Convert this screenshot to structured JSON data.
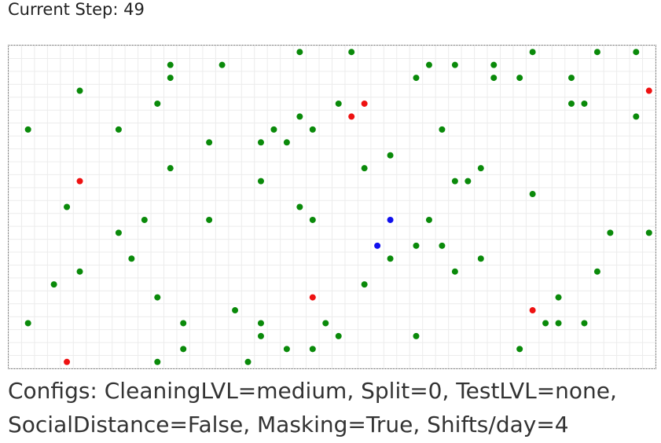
{
  "header": {
    "step_text": "Current Step: 49"
  },
  "grid": {
    "cols": 50,
    "rows": 25,
    "colors": {
      "healthy": "#0a8a0a",
      "infected": "#ee1111",
      "immune": "#1010ee",
      "gridline": "#ececec"
    },
    "agents": [
      {
        "c": 22,
        "r": 0,
        "s": "healthy"
      },
      {
        "c": 26,
        "r": 0,
        "s": "healthy"
      },
      {
        "c": 40,
        "r": 0,
        "s": "healthy"
      },
      {
        "c": 45,
        "r": 0,
        "s": "healthy"
      },
      {
        "c": 48,
        "r": 0,
        "s": "healthy"
      },
      {
        "c": 12,
        "r": 1,
        "s": "healthy"
      },
      {
        "c": 16,
        "r": 1,
        "s": "healthy"
      },
      {
        "c": 32,
        "r": 1,
        "s": "healthy"
      },
      {
        "c": 34,
        "r": 1,
        "s": "healthy"
      },
      {
        "c": 37,
        "r": 1,
        "s": "healthy"
      },
      {
        "c": 12,
        "r": 2,
        "s": "healthy"
      },
      {
        "c": 31,
        "r": 2,
        "s": "healthy"
      },
      {
        "c": 37,
        "r": 2,
        "s": "healthy"
      },
      {
        "c": 39,
        "r": 2,
        "s": "healthy"
      },
      {
        "c": 43,
        "r": 2,
        "s": "healthy"
      },
      {
        "c": 5,
        "r": 3,
        "s": "healthy"
      },
      {
        "c": 49,
        "r": 3,
        "s": "infected"
      },
      {
        "c": 11,
        "r": 4,
        "s": "healthy"
      },
      {
        "c": 25,
        "r": 4,
        "s": "healthy"
      },
      {
        "c": 27,
        "r": 4,
        "s": "infected"
      },
      {
        "c": 43,
        "r": 4,
        "s": "healthy"
      },
      {
        "c": 44,
        "r": 4,
        "s": "healthy"
      },
      {
        "c": 22,
        "r": 5,
        "s": "healthy"
      },
      {
        "c": 26,
        "r": 5,
        "s": "infected"
      },
      {
        "c": 48,
        "r": 5,
        "s": "healthy"
      },
      {
        "c": 1,
        "r": 6,
        "s": "healthy"
      },
      {
        "c": 8,
        "r": 6,
        "s": "healthy"
      },
      {
        "c": 20,
        "r": 6,
        "s": "healthy"
      },
      {
        "c": 23,
        "r": 6,
        "s": "healthy"
      },
      {
        "c": 33,
        "r": 6,
        "s": "healthy"
      },
      {
        "c": 15,
        "r": 7,
        "s": "healthy"
      },
      {
        "c": 19,
        "r": 7,
        "s": "healthy"
      },
      {
        "c": 21,
        "r": 7,
        "s": "healthy"
      },
      {
        "c": 29,
        "r": 8,
        "s": "healthy"
      },
      {
        "c": 12,
        "r": 9,
        "s": "healthy"
      },
      {
        "c": 27,
        "r": 9,
        "s": "healthy"
      },
      {
        "c": 36,
        "r": 9,
        "s": "healthy"
      },
      {
        "c": 5,
        "r": 10,
        "s": "infected"
      },
      {
        "c": 19,
        "r": 10,
        "s": "healthy"
      },
      {
        "c": 34,
        "r": 10,
        "s": "healthy"
      },
      {
        "c": 35,
        "r": 10,
        "s": "healthy"
      },
      {
        "c": 40,
        "r": 11,
        "s": "healthy"
      },
      {
        "c": 4,
        "r": 12,
        "s": "healthy"
      },
      {
        "c": 22,
        "r": 12,
        "s": "healthy"
      },
      {
        "c": 10,
        "r": 13,
        "s": "healthy"
      },
      {
        "c": 15,
        "r": 13,
        "s": "healthy"
      },
      {
        "c": 23,
        "r": 13,
        "s": "healthy"
      },
      {
        "c": 29,
        "r": 13,
        "s": "immune"
      },
      {
        "c": 32,
        "r": 13,
        "s": "healthy"
      },
      {
        "c": 8,
        "r": 14,
        "s": "healthy"
      },
      {
        "c": 46,
        "r": 14,
        "s": "healthy"
      },
      {
        "c": 49,
        "r": 14,
        "s": "healthy"
      },
      {
        "c": 28,
        "r": 15,
        "s": "immune"
      },
      {
        "c": 31,
        "r": 15,
        "s": "healthy"
      },
      {
        "c": 33,
        "r": 15,
        "s": "healthy"
      },
      {
        "c": 9,
        "r": 16,
        "s": "healthy"
      },
      {
        "c": 29,
        "r": 16,
        "s": "healthy"
      },
      {
        "c": 36,
        "r": 16,
        "s": "healthy"
      },
      {
        "c": 5,
        "r": 17,
        "s": "healthy"
      },
      {
        "c": 34,
        "r": 17,
        "s": "healthy"
      },
      {
        "c": 45,
        "r": 17,
        "s": "healthy"
      },
      {
        "c": 3,
        "r": 18,
        "s": "healthy"
      },
      {
        "c": 27,
        "r": 18,
        "s": "healthy"
      },
      {
        "c": 11,
        "r": 19,
        "s": "healthy"
      },
      {
        "c": 23,
        "r": 19,
        "s": "infected"
      },
      {
        "c": 42,
        "r": 19,
        "s": "healthy"
      },
      {
        "c": 17,
        "r": 20,
        "s": "healthy"
      },
      {
        "c": 40,
        "r": 20,
        "s": "infected"
      },
      {
        "c": 1,
        "r": 21,
        "s": "healthy"
      },
      {
        "c": 13,
        "r": 21,
        "s": "healthy"
      },
      {
        "c": 19,
        "r": 21,
        "s": "healthy"
      },
      {
        "c": 24,
        "r": 21,
        "s": "healthy"
      },
      {
        "c": 41,
        "r": 21,
        "s": "healthy"
      },
      {
        "c": 42,
        "r": 21,
        "s": "healthy"
      },
      {
        "c": 44,
        "r": 21,
        "s": "healthy"
      },
      {
        "c": 19,
        "r": 22,
        "s": "healthy"
      },
      {
        "c": 25,
        "r": 22,
        "s": "healthy"
      },
      {
        "c": 31,
        "r": 22,
        "s": "healthy"
      },
      {
        "c": 13,
        "r": 23,
        "s": "healthy"
      },
      {
        "c": 21,
        "r": 23,
        "s": "healthy"
      },
      {
        "c": 23,
        "r": 23,
        "s": "healthy"
      },
      {
        "c": 39,
        "r": 23,
        "s": "healthy"
      },
      {
        "c": 4,
        "r": 24,
        "s": "infected"
      },
      {
        "c": 11,
        "r": 24,
        "s": "healthy"
      },
      {
        "c": 18,
        "r": 24,
        "s": "healthy"
      }
    ]
  },
  "footer": {
    "configs_line1": "Configs: CleaningLVL=medium, Split=0, TestLVL=none,",
    "configs_line2": "SocialDistance=False, Masking=True, Shifts/day=4"
  }
}
